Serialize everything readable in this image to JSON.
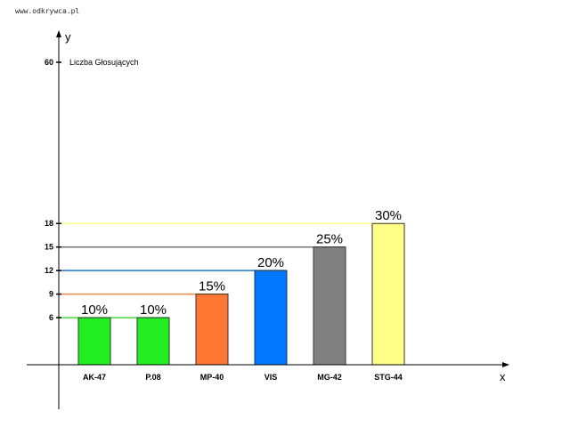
{
  "watermark": "www.odkrywca.pl",
  "chart_data": {
    "type": "bar",
    "title": "",
    "xlabel": "x",
    "ylabel": "y",
    "y_annotation": "Liczba Głosujących",
    "yticks": [
      6,
      9,
      12,
      15,
      18,
      60
    ],
    "categories": [
      "AK-47",
      "P.08",
      "MP-40",
      "VIS",
      "MG-42",
      "STG-44"
    ],
    "values": [
      6,
      6,
      9,
      12,
      15,
      18
    ],
    "percent_labels": [
      "10%",
      "10%",
      "15%",
      "20%",
      "25%",
      "30%"
    ],
    "colors": [
      "#22ee22",
      "#22ee22",
      "#ff7733",
      "#0077ff",
      "#808080",
      "#ffff88"
    ],
    "guide_colors": {
      "6": "#44dd44",
      "9": "#ee8844",
      "12": "#2277cc",
      "15": "#777777",
      "18": "#ffff88"
    },
    "grid": false,
    "legend": "none"
  }
}
